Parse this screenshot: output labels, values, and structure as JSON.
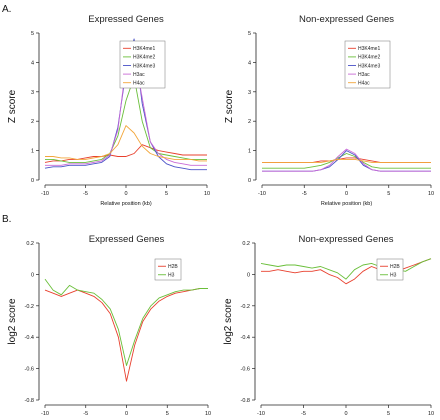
{
  "figure": {
    "panels": [
      {
        "label": "A."
      },
      {
        "label": "B."
      }
    ]
  },
  "chart_data": [
    {
      "type": "line",
      "title": "Expressed Genes",
      "xlabel": "Relative position (kb)",
      "ylabel": "Z score",
      "xlim": [
        -10,
        10
      ],
      "ylim": [
        0,
        5
      ],
      "xticks": [
        -10,
        -5,
        0,
        5,
        10
      ],
      "yticks": [
        0,
        1,
        2,
        3,
        4,
        5
      ],
      "legend": "top-right",
      "x": [
        -10,
        -9,
        -8,
        -7,
        -6,
        -5,
        -4,
        -3,
        -2,
        -1,
        0,
        1,
        2,
        3,
        4,
        5,
        6,
        7,
        8,
        9,
        10
      ],
      "series": [
        {
          "name": "H3K4me1",
          "color": "#e8402e",
          "values": [
            0.6,
            0.65,
            0.65,
            0.7,
            0.7,
            0.75,
            0.8,
            0.8,
            0.85,
            0.8,
            0.8,
            0.9,
            1.2,
            1.1,
            1.0,
            0.95,
            0.9,
            0.85,
            0.85,
            0.85,
            0.85
          ]
        },
        {
          "name": "H3K4me2",
          "color": "#6abf3a",
          "values": [
            0.7,
            0.7,
            0.65,
            0.6,
            0.6,
            0.6,
            0.65,
            0.7,
            0.9,
            1.5,
            2.7,
            3.5,
            2.0,
            1.1,
            0.9,
            0.85,
            0.8,
            0.75,
            0.7,
            0.7,
            0.7
          ]
        },
        {
          "name": "H3K4me3",
          "color": "#4a52c8",
          "values": [
            0.4,
            0.45,
            0.45,
            0.5,
            0.5,
            0.5,
            0.55,
            0.6,
            0.8,
            1.8,
            3.7,
            4.8,
            2.6,
            1.3,
            0.8,
            0.55,
            0.45,
            0.4,
            0.35,
            0.35,
            0.35
          ]
        },
        {
          "name": "H3ac",
          "color": "#c86ad6",
          "values": [
            0.5,
            0.5,
            0.5,
            0.55,
            0.55,
            0.55,
            0.6,
            0.65,
            0.85,
            1.7,
            3.9,
            4.3,
            2.8,
            1.3,
            0.9,
            0.7,
            0.6,
            0.55,
            0.5,
            0.5,
            0.5
          ]
        },
        {
          "name": "H4ac",
          "color": "#f2a63a",
          "values": [
            0.8,
            0.8,
            0.75,
            0.75,
            0.7,
            0.7,
            0.75,
            0.8,
            0.9,
            1.2,
            1.85,
            1.6,
            1.15,
            0.9,
            0.8,
            0.75,
            0.7,
            0.7,
            0.7,
            0.65,
            0.65
          ]
        }
      ]
    },
    {
      "type": "line",
      "title": "Non-expressed Genes",
      "xlabel": "Relative position (kb)",
      "ylabel": "Z score",
      "xlim": [
        -10,
        10
      ],
      "ylim": [
        0,
        5
      ],
      "xticks": [
        -10,
        -5,
        0,
        5,
        10
      ],
      "yticks": [
        0,
        1,
        2,
        3,
        4,
        5
      ],
      "legend": "top-right",
      "x": [
        -10,
        -9,
        -8,
        -7,
        -6,
        -5,
        -4,
        -3,
        -2,
        -1,
        0,
        1,
        2,
        3,
        4,
        5,
        6,
        7,
        8,
        9,
        10
      ],
      "series": [
        {
          "name": "H3K4me1",
          "color": "#e8402e",
          "values": [
            0.6,
            0.6,
            0.6,
            0.6,
            0.6,
            0.6,
            0.6,
            0.65,
            0.65,
            0.7,
            0.75,
            0.75,
            0.7,
            0.65,
            0.6,
            0.6,
            0.6,
            0.6,
            0.6,
            0.6,
            0.6
          ]
        },
        {
          "name": "H3K4me2",
          "color": "#6abf3a",
          "values": [
            0.4,
            0.4,
            0.4,
            0.4,
            0.4,
            0.4,
            0.45,
            0.5,
            0.6,
            0.75,
            0.9,
            0.8,
            0.6,
            0.45,
            0.4,
            0.4,
            0.4,
            0.4,
            0.4,
            0.4,
            0.4
          ]
        },
        {
          "name": "H3K4me3",
          "color": "#4a52c8",
          "values": [
            0.3,
            0.3,
            0.3,
            0.3,
            0.3,
            0.3,
            0.3,
            0.35,
            0.45,
            0.7,
            1.0,
            0.85,
            0.5,
            0.35,
            0.3,
            0.3,
            0.3,
            0.3,
            0.3,
            0.3,
            0.3
          ]
        },
        {
          "name": "H3ac",
          "color": "#c86ad6",
          "values": [
            0.3,
            0.3,
            0.3,
            0.3,
            0.3,
            0.3,
            0.3,
            0.35,
            0.5,
            0.8,
            1.05,
            0.9,
            0.55,
            0.35,
            0.3,
            0.3,
            0.3,
            0.3,
            0.3,
            0.3,
            0.3
          ]
        },
        {
          "name": "H4ac",
          "color": "#f2a63a",
          "values": [
            0.6,
            0.6,
            0.6,
            0.6,
            0.6,
            0.6,
            0.6,
            0.6,
            0.65,
            0.7,
            0.7,
            0.7,
            0.65,
            0.6,
            0.6,
            0.6,
            0.6,
            0.6,
            0.6,
            0.6,
            0.6
          ]
        }
      ]
    },
    {
      "type": "line",
      "title": "Expressed Genes",
      "xlabel": "Relative position (kb)",
      "ylabel": "log2 score",
      "xlim": [
        -10,
        10
      ],
      "ylim": [
        -0.8,
        0.2
      ],
      "xticks": [
        -10,
        -5,
        0,
        5,
        10
      ],
      "yticks": [
        -0.8,
        -0.6,
        -0.4,
        -0.2,
        0,
        0.2
      ],
      "ytick_labels": [
        "-0.8",
        "-0.6",
        "-0.4",
        "-0.2",
        "0",
        "0.2"
      ],
      "legend": "top-right",
      "x": [
        -10,
        -9,
        -8,
        -7,
        -6,
        -5,
        -4,
        -3,
        -2,
        -1,
        0,
        1,
        2,
        3,
        4,
        5,
        6,
        7,
        8,
        9,
        10
      ],
      "series": [
        {
          "name": "H2B",
          "color": "#e8402e",
          "values": [
            -0.1,
            -0.12,
            -0.14,
            -0.12,
            -0.1,
            -0.12,
            -0.14,
            -0.18,
            -0.25,
            -0.4,
            -0.68,
            -0.45,
            -0.3,
            -0.22,
            -0.17,
            -0.14,
            -0.12,
            -0.11,
            -0.1,
            -0.09,
            -0.09
          ]
        },
        {
          "name": "H3",
          "color": "#6abf3a",
          "values": [
            -0.03,
            -0.1,
            -0.13,
            -0.07,
            -0.1,
            -0.11,
            -0.12,
            -0.16,
            -0.22,
            -0.35,
            -0.58,
            -0.42,
            -0.28,
            -0.2,
            -0.15,
            -0.13,
            -0.11,
            -0.1,
            -0.1,
            -0.09,
            -0.09
          ]
        }
      ]
    },
    {
      "type": "line",
      "title": "Non-expressed Genes",
      "xlabel": "Relative position (kb)",
      "ylabel": "log2 score",
      "xlim": [
        -10,
        10
      ],
      "ylim": [
        -0.8,
        0.2
      ],
      "xticks": [
        -10,
        -5,
        0,
        5,
        10
      ],
      "yticks": [
        -0.8,
        -0.6,
        -0.4,
        -0.2,
        0,
        0.2
      ],
      "ytick_labels": [
        "-0.8",
        "-0.6",
        "-0.4",
        "-0.2",
        "0",
        "0.2"
      ],
      "legend": "top-right",
      "x": [
        -10,
        -9,
        -8,
        -7,
        -6,
        -5,
        -4,
        -3,
        -2,
        -1,
        0,
        1,
        2,
        3,
        4,
        5,
        6,
        7,
        8,
        9,
        10
      ],
      "series": [
        {
          "name": "H2B",
          "color": "#e8402e",
          "values": [
            0.02,
            0.02,
            0.03,
            0.02,
            0.01,
            0.02,
            0.02,
            0.03,
            0.0,
            -0.02,
            -0.06,
            -0.03,
            0.02,
            0.05,
            0.03,
            0.02,
            0.02,
            0.04,
            0.06,
            0.08,
            0.1
          ]
        },
        {
          "name": "H3",
          "color": "#6abf3a",
          "values": [
            0.07,
            0.06,
            0.05,
            0.06,
            0.06,
            0.05,
            0.04,
            0.05,
            0.03,
            0.01,
            -0.03,
            0.03,
            0.06,
            0.07,
            0.05,
            0.04,
            0.03,
            0.02,
            0.05,
            0.08,
            0.1
          ]
        }
      ]
    }
  ]
}
